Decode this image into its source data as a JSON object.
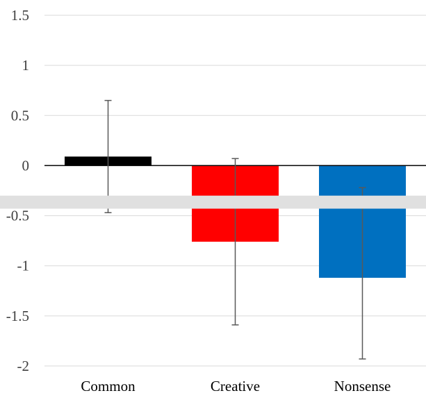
{
  "chart_data": {
    "type": "bar",
    "title": "",
    "xlabel": "",
    "ylabel": "",
    "categories": [
      "Common",
      "Creative",
      "Nonsense"
    ],
    "values": [
      0.09,
      -0.76,
      -1.12
    ],
    "error_low": [
      -0.47,
      -1.59,
      -1.93
    ],
    "error_high": [
      0.65,
      0.07,
      -0.22
    ],
    "ylim": [
      -2,
      1.5
    ],
    "yticks": [
      1.5,
      1,
      0.5,
      0,
      -0.5,
      -1,
      -1.5,
      -2
    ],
    "ytick_labels": [
      "1.5",
      "1",
      "0.5",
      "0",
      "-0.5",
      "-1",
      "-1.5",
      "-2"
    ],
    "grid": true,
    "legend": "none",
    "colors": [
      "#000000",
      "#ff0000",
      "#0070c0"
    ],
    "gridline_color": "#d9d9d9",
    "axis_color": "#000000",
    "errorbar_color": "#595959",
    "overlay_band_color": "#e0e0e0"
  }
}
